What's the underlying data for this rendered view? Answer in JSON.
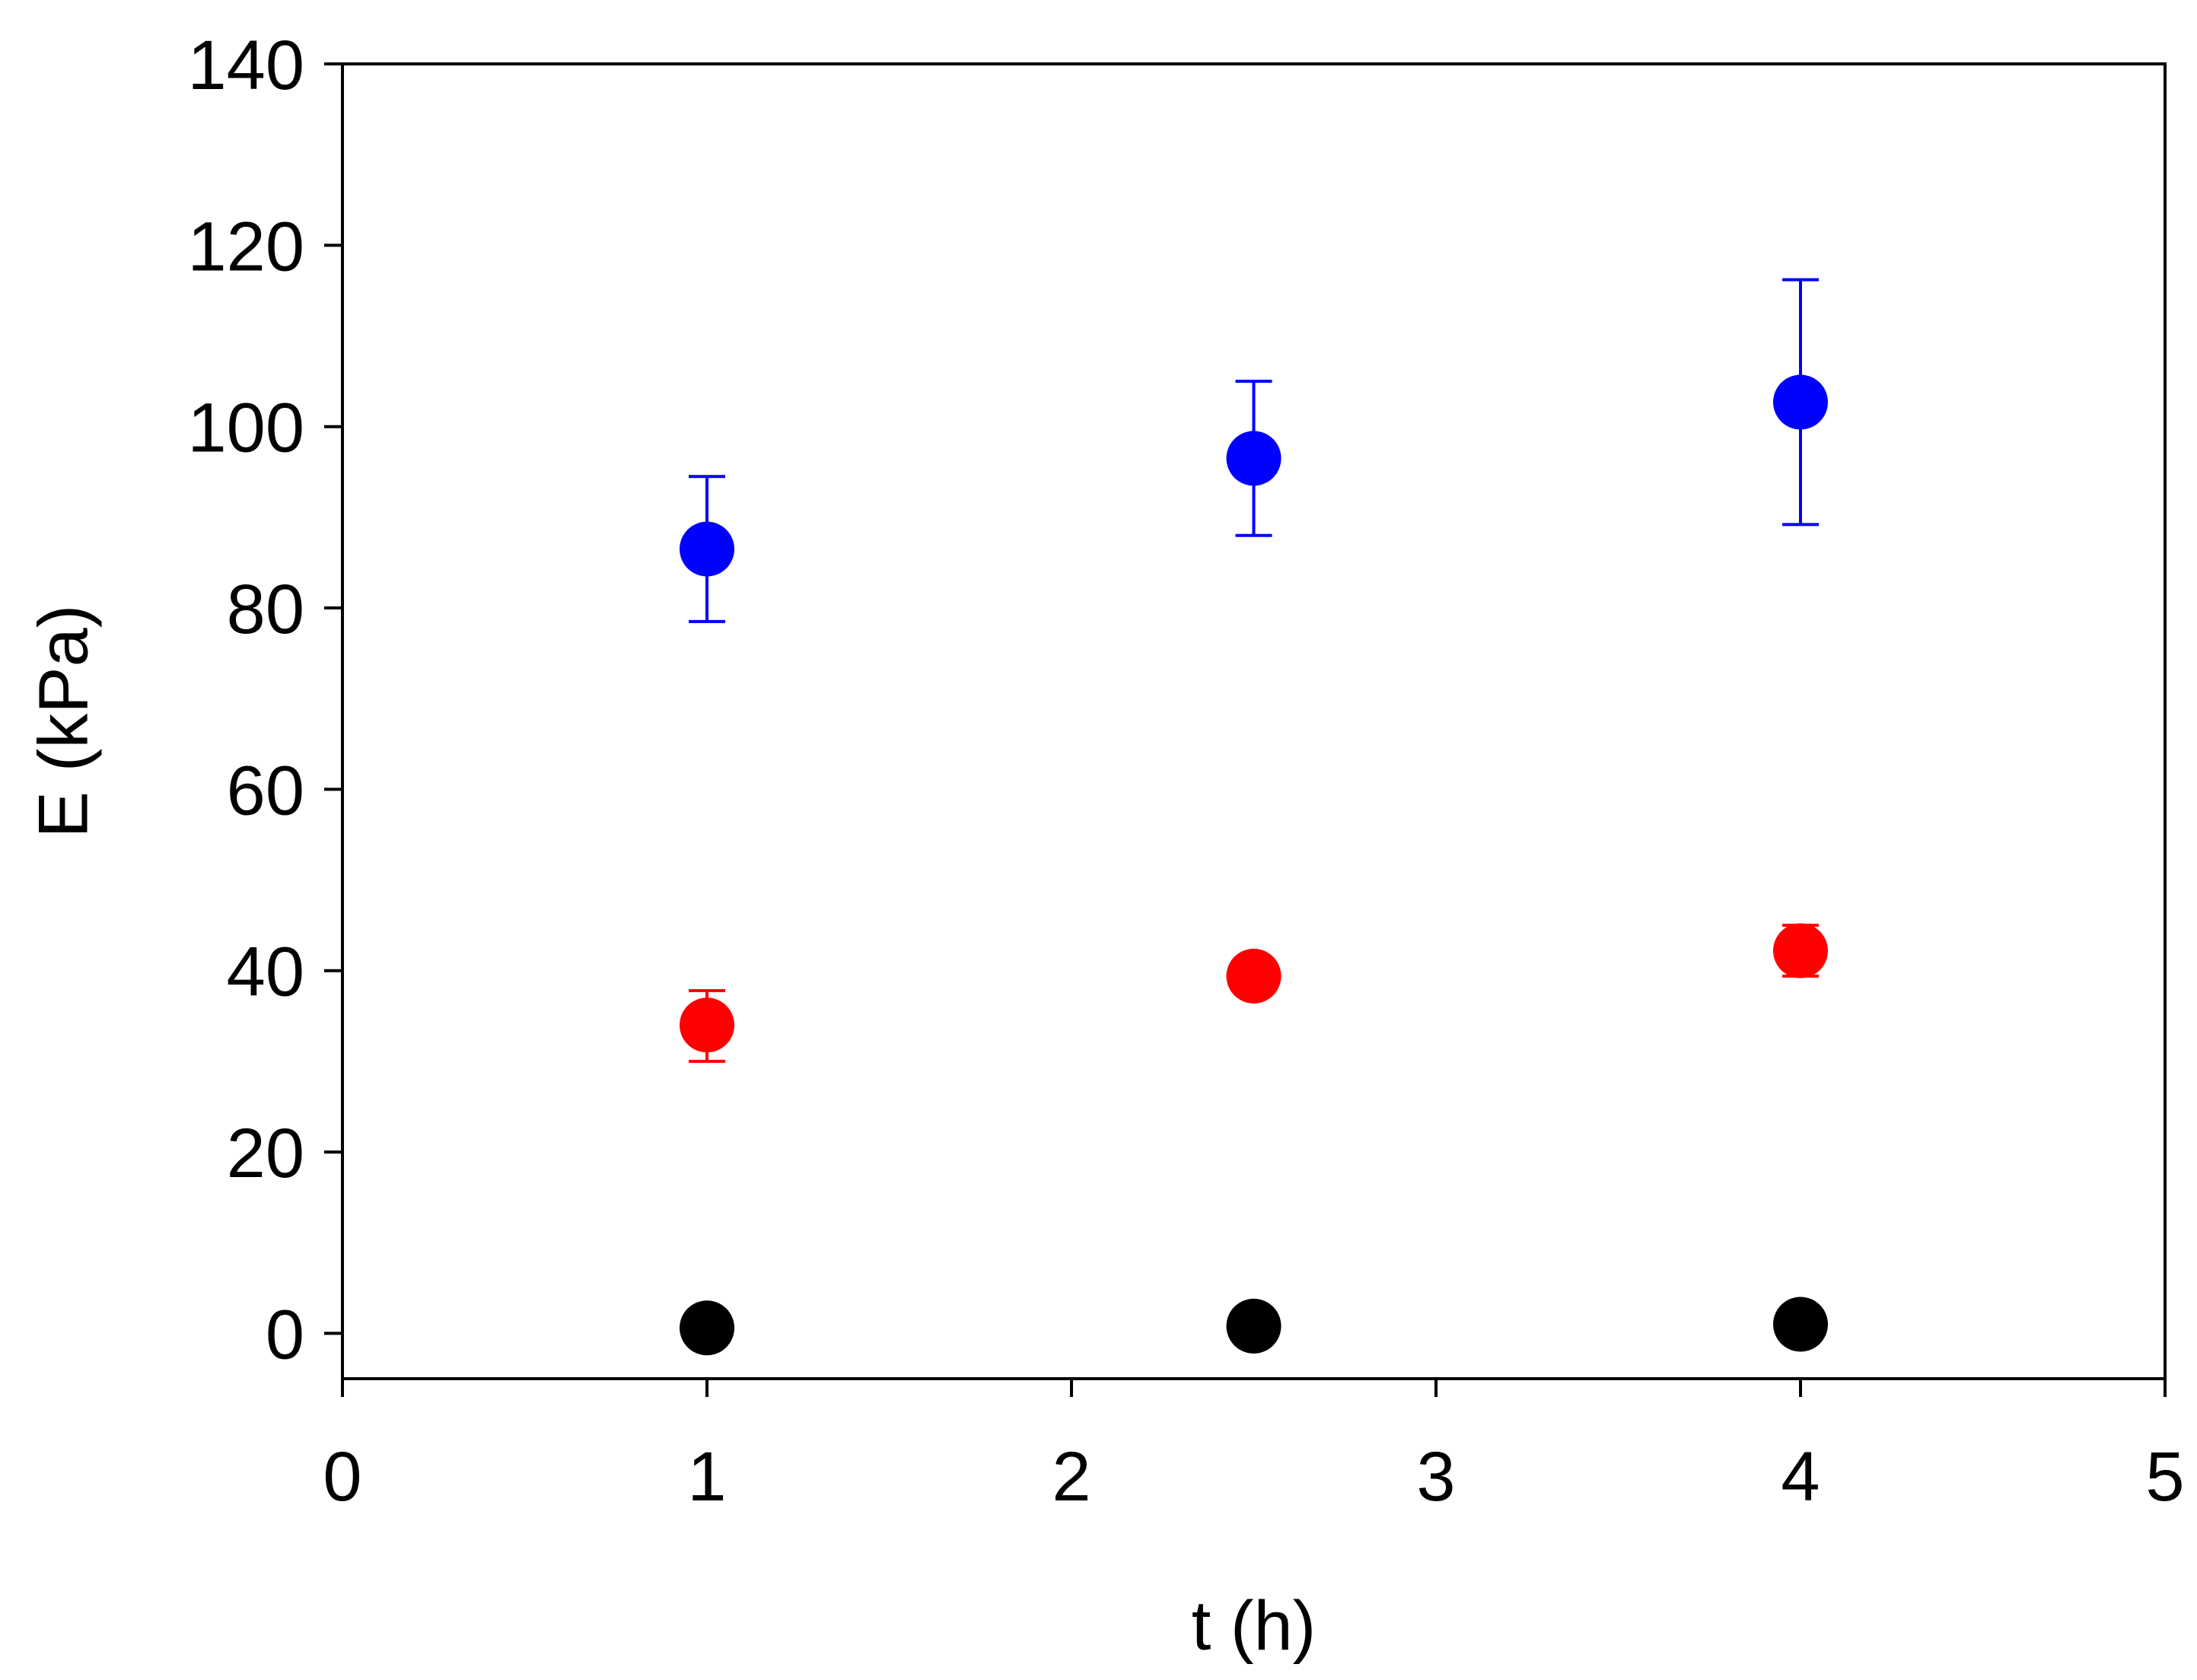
{
  "chart_data": {
    "type": "scatter",
    "title": "",
    "xlabel": "t (h)",
    "ylabel": "E (kPa)",
    "xlim": [
      0,
      5
    ],
    "ylim": [
      -5,
      140
    ],
    "x_ticks": [
      0,
      1,
      2,
      3,
      4,
      5
    ],
    "y_ticks": [
      0,
      20,
      40,
      60,
      80,
      100,
      120,
      140
    ],
    "x_tick_labels": [
      "0",
      "1",
      "2",
      "3",
      "4",
      "5"
    ],
    "y_tick_labels": [
      "0",
      "20",
      "40",
      "60",
      "80",
      "100",
      "120",
      "140"
    ],
    "grid": false,
    "legend": "none",
    "series": [
      {
        "color": "#0000ff",
        "x": [
          1,
          2.5,
          4
        ],
        "y": [
          86.5,
          96.5,
          102.7
        ],
        "yerr_upper": [
          94.5,
          105.0,
          116.2
        ],
        "yerr_lower": [
          78.5,
          88.0,
          89.2
        ]
      },
      {
        "color": "#ff0000",
        "x": [
          1,
          2.5,
          4
        ],
        "y": [
          34.0,
          39.4,
          42.2
        ],
        "yerr_upper": [
          37.8,
          null,
          45.0
        ],
        "yerr_lower": [
          30.0,
          null,
          39.4
        ]
      },
      {
        "color": "#000000",
        "x": [
          1,
          2.5,
          4
        ],
        "y": [
          0.6,
          0.8,
          1.0
        ],
        "yerr_upper": [
          null,
          null,
          null
        ],
        "yerr_lower": [
          null,
          null,
          null
        ]
      }
    ]
  }
}
